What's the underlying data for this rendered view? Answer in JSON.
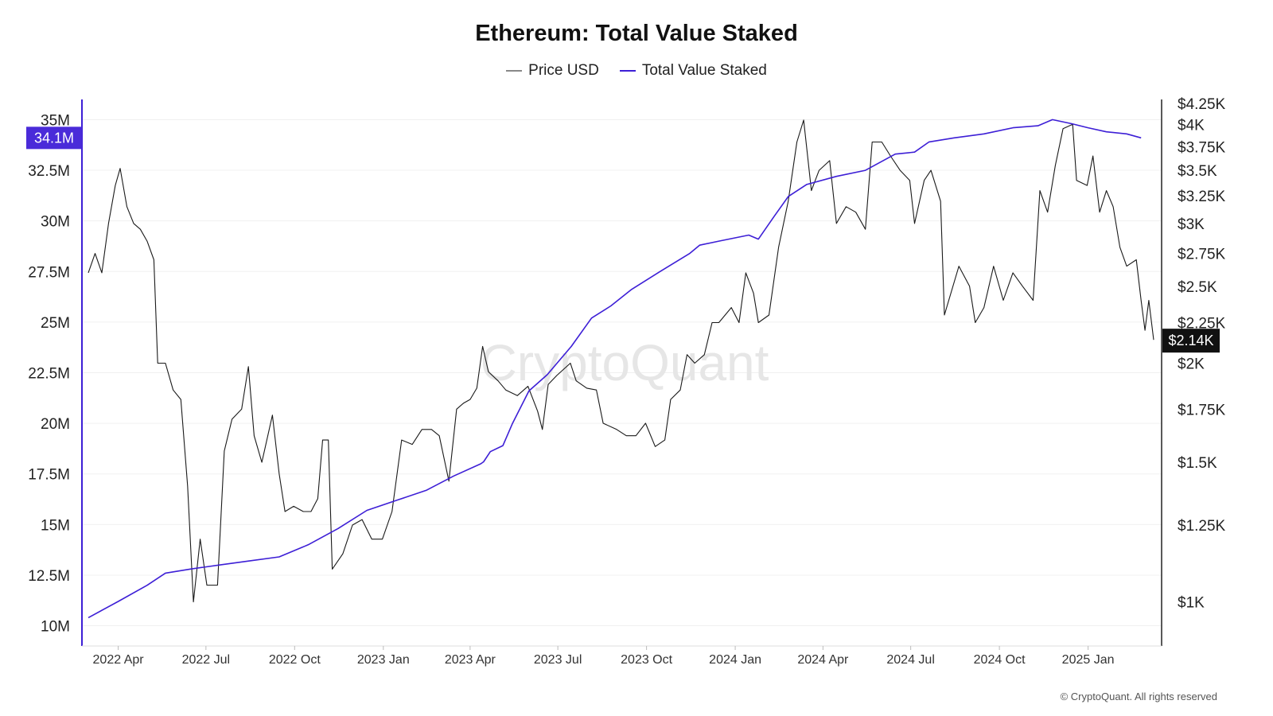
{
  "chart_data": {
    "type": "line",
    "title": "Ethereum: Total Value Staked",
    "watermark": "CryptoQuant",
    "copyright": "© CryptoQuant. All rights reserved",
    "x_ticks": [
      "2022 Apr",
      "2022 Jul",
      "2022 Oct",
      "2023 Jan",
      "2023 Apr",
      "2023 Jul",
      "2023 Oct",
      "2024 Jan",
      "2024 Apr",
      "2024 Jul",
      "2024 Oct",
      "2025 Jan"
    ],
    "x_range": [
      "2022-03-01",
      "2025-03-10"
    ],
    "y_left": {
      "ticks": [
        "10M",
        "12.5M",
        "15M",
        "17.5M",
        "20M",
        "22.5M",
        "25M",
        "27.5M",
        "30M",
        "32.5M",
        "35M"
      ],
      "tick_values": [
        10,
        12.5,
        15,
        17.5,
        20,
        22.5,
        25,
        27.5,
        30,
        32.5,
        35
      ],
      "unit": "million ETH",
      "range": [
        9.0,
        36.0
      ]
    },
    "y_right": {
      "scale": "log",
      "ticks": [
        "$1K",
        "$1.25K",
        "$1.5K",
        "$1.75K",
        "$2K",
        "$2.25K",
        "$2.5K",
        "$2.75K",
        "$3K",
        "$3.25K",
        "$3.5K",
        "$3.75K",
        "$4K",
        "$4.25K"
      ],
      "tick_values": [
        1000,
        1250,
        1500,
        1750,
        2000,
        2250,
        2500,
        2750,
        3000,
        3250,
        3500,
        3750,
        4000,
        4250
      ],
      "range": [
        880,
        4300
      ]
    },
    "grid": true,
    "legend_position": "top-center",
    "series": [
      {
        "name": "Price USD",
        "color": "#1a1a1a",
        "axis": "right",
        "points": [
          [
            "2022-03-01",
            2600
          ],
          [
            "2022-03-08",
            2750
          ],
          [
            "2022-03-15",
            2600
          ],
          [
            "2022-03-22",
            3000
          ],
          [
            "2022-03-29",
            3350
          ],
          [
            "2022-04-03",
            3520
          ],
          [
            "2022-04-10",
            3150
          ],
          [
            "2022-04-17",
            3000
          ],
          [
            "2022-04-24",
            2950
          ],
          [
            "2022-05-01",
            2850
          ],
          [
            "2022-05-08",
            2700
          ],
          [
            "2022-05-12",
            2000
          ],
          [
            "2022-05-20",
            2000
          ],
          [
            "2022-05-28",
            1850
          ],
          [
            "2022-06-05",
            1800
          ],
          [
            "2022-06-12",
            1400
          ],
          [
            "2022-06-18",
            1000
          ],
          [
            "2022-06-25",
            1200
          ],
          [
            "2022-07-02",
            1050
          ],
          [
            "2022-07-13",
            1050
          ],
          [
            "2022-07-20",
            1550
          ],
          [
            "2022-07-28",
            1700
          ],
          [
            "2022-08-07",
            1750
          ],
          [
            "2022-08-14",
            1980
          ],
          [
            "2022-08-20",
            1620
          ],
          [
            "2022-08-28",
            1500
          ],
          [
            "2022-09-08",
            1720
          ],
          [
            "2022-09-15",
            1450
          ],
          [
            "2022-09-21",
            1300
          ],
          [
            "2022-09-30",
            1320
          ],
          [
            "2022-10-10",
            1300
          ],
          [
            "2022-10-18",
            1300
          ],
          [
            "2022-10-25",
            1350
          ],
          [
            "2022-10-30",
            1600
          ],
          [
            "2022-11-05",
            1600
          ],
          [
            "2022-11-09",
            1100
          ],
          [
            "2022-11-20",
            1150
          ],
          [
            "2022-11-30",
            1250
          ],
          [
            "2022-12-10",
            1270
          ],
          [
            "2022-12-20",
            1200
          ],
          [
            "2022-12-31",
            1200
          ],
          [
            "2023-01-10",
            1300
          ],
          [
            "2023-01-20",
            1600
          ],
          [
            "2023-01-31",
            1580
          ],
          [
            "2023-02-10",
            1650
          ],
          [
            "2023-02-20",
            1650
          ],
          [
            "2023-02-28",
            1620
          ],
          [
            "2023-03-10",
            1420
          ],
          [
            "2023-03-18",
            1750
          ],
          [
            "2023-03-25",
            1780
          ],
          [
            "2023-04-01",
            1800
          ],
          [
            "2023-04-08",
            1860
          ],
          [
            "2023-04-14",
            2100
          ],
          [
            "2023-04-20",
            1950
          ],
          [
            "2023-04-30",
            1900
          ],
          [
            "2023-05-08",
            1850
          ],
          [
            "2023-05-20",
            1820
          ],
          [
            "2023-05-31",
            1870
          ],
          [
            "2023-06-10",
            1740
          ],
          [
            "2023-06-15",
            1650
          ],
          [
            "2023-06-21",
            1880
          ],
          [
            "2023-06-30",
            1930
          ],
          [
            "2023-07-14",
            2000
          ],
          [
            "2023-07-20",
            1900
          ],
          [
            "2023-07-31",
            1860
          ],
          [
            "2023-08-10",
            1850
          ],
          [
            "2023-08-17",
            1680
          ],
          [
            "2023-08-31",
            1650
          ],
          [
            "2023-09-10",
            1620
          ],
          [
            "2023-09-20",
            1620
          ],
          [
            "2023-09-30",
            1680
          ],
          [
            "2023-10-10",
            1570
          ],
          [
            "2023-10-20",
            1600
          ],
          [
            "2023-10-26",
            1800
          ],
          [
            "2023-11-05",
            1850
          ],
          [
            "2023-11-12",
            2050
          ],
          [
            "2023-11-20",
            2000
          ],
          [
            "2023-11-30",
            2050
          ],
          [
            "2023-12-08",
            2250
          ],
          [
            "2023-12-15",
            2250
          ],
          [
            "2023-12-28",
            2350
          ],
          [
            "2024-01-05",
            2250
          ],
          [
            "2024-01-12",
            2600
          ],
          [
            "2024-01-20",
            2450
          ],
          [
            "2024-01-25",
            2250
          ],
          [
            "2024-02-05",
            2300
          ],
          [
            "2024-02-15",
            2800
          ],
          [
            "2024-02-25",
            3200
          ],
          [
            "2024-03-05",
            3800
          ],
          [
            "2024-03-12",
            4050
          ],
          [
            "2024-03-20",
            3300
          ],
          [
            "2024-03-28",
            3500
          ],
          [
            "2024-04-08",
            3600
          ],
          [
            "2024-04-15",
            3000
          ],
          [
            "2024-04-25",
            3150
          ],
          [
            "2024-05-05",
            3100
          ],
          [
            "2024-05-15",
            2950
          ],
          [
            "2024-05-22",
            3800
          ],
          [
            "2024-06-01",
            3800
          ],
          [
            "2024-06-10",
            3650
          ],
          [
            "2024-06-20",
            3500
          ],
          [
            "2024-06-30",
            3400
          ],
          [
            "2024-07-05",
            3000
          ],
          [
            "2024-07-15",
            3400
          ],
          [
            "2024-07-22",
            3500
          ],
          [
            "2024-08-01",
            3200
          ],
          [
            "2024-08-05",
            2300
          ],
          [
            "2024-08-20",
            2650
          ],
          [
            "2024-08-31",
            2500
          ],
          [
            "2024-09-06",
            2250
          ],
          [
            "2024-09-15",
            2350
          ],
          [
            "2024-09-25",
            2650
          ],
          [
            "2024-10-05",
            2400
          ],
          [
            "2024-10-15",
            2600
          ],
          [
            "2024-10-25",
            2500
          ],
          [
            "2024-11-05",
            2400
          ],
          [
            "2024-11-12",
            3300
          ],
          [
            "2024-11-20",
            3100
          ],
          [
            "2024-11-28",
            3550
          ],
          [
            "2024-12-06",
            3950
          ],
          [
            "2024-12-16",
            4000
          ],
          [
            "2024-12-20",
            3400
          ],
          [
            "2024-12-31",
            3350
          ],
          [
            "2025-01-06",
            3650
          ],
          [
            "2025-01-13",
            3100
          ],
          [
            "2025-01-20",
            3300
          ],
          [
            "2025-01-27",
            3150
          ],
          [
            "2025-02-03",
            2800
          ],
          [
            "2025-02-10",
            2650
          ],
          [
            "2025-02-20",
            2700
          ],
          [
            "2025-02-25",
            2400
          ],
          [
            "2025-03-01",
            2200
          ],
          [
            "2025-03-05",
            2400
          ],
          [
            "2025-03-10",
            2140
          ]
        ]
      },
      {
        "name": "Total Value Staked",
        "color": "#3d1fd6",
        "axis": "left",
        "points": [
          [
            "2022-03-01",
            10.4
          ],
          [
            "2022-04-01",
            11.2
          ],
          [
            "2022-05-01",
            12.0
          ],
          [
            "2022-05-20",
            12.6
          ],
          [
            "2022-06-15",
            12.8
          ],
          [
            "2022-07-15",
            13.0
          ],
          [
            "2022-08-15",
            13.2
          ],
          [
            "2022-09-15",
            13.4
          ],
          [
            "2022-10-15",
            14.0
          ],
          [
            "2022-11-15",
            14.8
          ],
          [
            "2022-12-15",
            15.7
          ],
          [
            "2023-01-15",
            16.2
          ],
          [
            "2023-02-15",
            16.7
          ],
          [
            "2023-03-15",
            17.4
          ],
          [
            "2023-04-12",
            18.0
          ],
          [
            "2023-04-15",
            18.1
          ],
          [
            "2023-04-22",
            18.6
          ],
          [
            "2023-05-05",
            18.9
          ],
          [
            "2023-05-15",
            20.0
          ],
          [
            "2023-06-01",
            21.6
          ],
          [
            "2023-06-20",
            22.4
          ],
          [
            "2023-07-15",
            23.8
          ],
          [
            "2023-08-05",
            25.2
          ],
          [
            "2023-08-25",
            25.8
          ],
          [
            "2023-09-15",
            26.6
          ],
          [
            "2023-10-15",
            27.5
          ],
          [
            "2023-11-15",
            28.4
          ],
          [
            "2023-11-25",
            28.8
          ],
          [
            "2023-12-15",
            29.0
          ],
          [
            "2024-01-15",
            29.3
          ],
          [
            "2024-01-25",
            29.1
          ],
          [
            "2024-02-10",
            30.2
          ],
          [
            "2024-02-25",
            31.2
          ],
          [
            "2024-03-15",
            31.8
          ],
          [
            "2024-04-15",
            32.2
          ],
          [
            "2024-05-15",
            32.5
          ],
          [
            "2024-06-15",
            33.3
          ],
          [
            "2024-07-05",
            33.4
          ],
          [
            "2024-07-20",
            33.9
          ],
          [
            "2024-08-15",
            34.1
          ],
          [
            "2024-09-15",
            34.3
          ],
          [
            "2024-10-15",
            34.6
          ],
          [
            "2024-11-10",
            34.7
          ],
          [
            "2024-11-25",
            35.0
          ],
          [
            "2024-12-15",
            34.8
          ],
          [
            "2025-01-01",
            34.6
          ],
          [
            "2025-01-20",
            34.4
          ],
          [
            "2025-02-10",
            34.3
          ],
          [
            "2025-02-25",
            34.1
          ]
        ]
      }
    ],
    "current_values": {
      "left_badge": "34.1M",
      "right_badge": "$2.14K"
    }
  }
}
